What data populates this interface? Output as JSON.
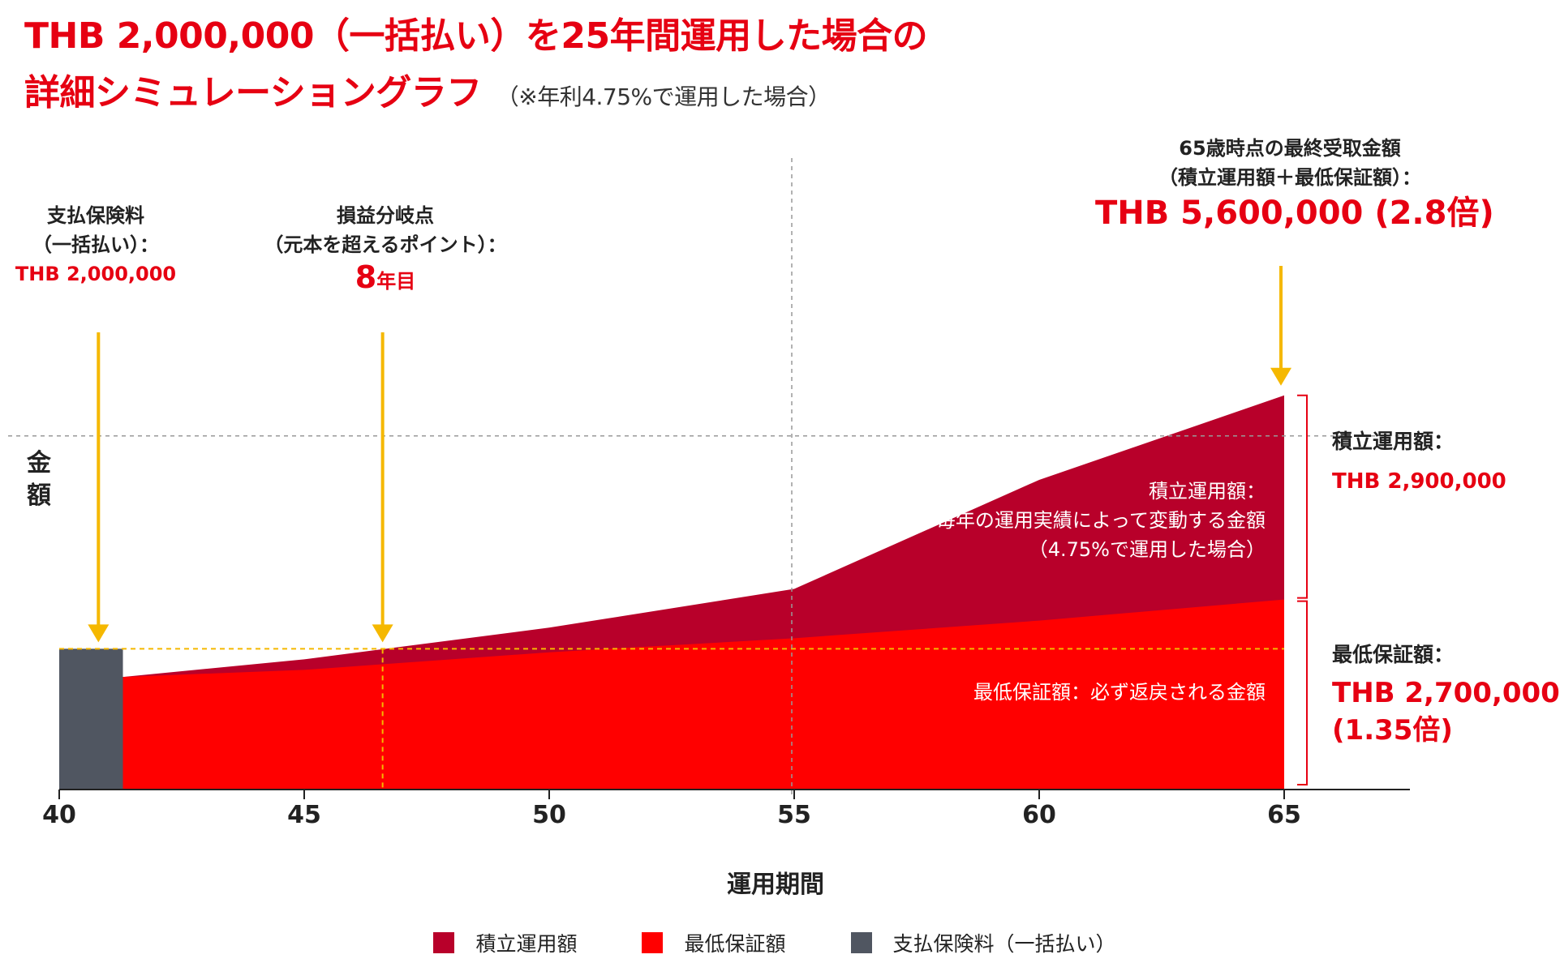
{
  "title": {
    "line1": "THB 2,000,000（一括払い）を25年間運用した場合の",
    "line2": "詳細シミュレーショングラフ",
    "note": "（※年利4.75%で運用した場合）"
  },
  "annotations": {
    "premium": {
      "line1": "支払保険料",
      "line2": "（一括払い）：",
      "value": "THB 2,000,000"
    },
    "breakeven": {
      "line1": "損益分岐点",
      "line2": "（元本を超えるポイント）：",
      "value_num": "8",
      "value_unit": "年目"
    },
    "final": {
      "line1": "65歳時点の最終受取金額",
      "line2": "（積立運用額＋最低保証額）：",
      "value": "THB 5,600,000 (2.8倍)"
    }
  },
  "side_labels": {
    "accumulated": {
      "heading": "積立運用額：",
      "value": "THB 2,900,000"
    },
    "guaranteed": {
      "heading": "最低保証額：",
      "value_line1": "THB 2,700,000",
      "value_line2": "(1.35倍)"
    }
  },
  "inner_labels": {
    "accumulated": {
      "line1": "積立運用額：",
      "line2": "毎年の運用実績によって変動する金額",
      "line3": "（4.75%で運用した場合）"
    },
    "guaranteed": {
      "line1": "最低保証額：必ず返戻される金額"
    }
  },
  "axes": {
    "y_label": [
      "金",
      "額"
    ],
    "x_label": "運用期間",
    "x_ticks": [
      "40",
      "45",
      "50",
      "55",
      "60",
      "65"
    ]
  },
  "legend": [
    {
      "label": "積立運用額",
      "color": "#b8002a"
    },
    {
      "label": "最低保証額",
      "color": "#ff0000"
    },
    {
      "label": "支払保険料（一括払い）",
      "color": "#505661"
    }
  ],
  "colors": {
    "accent": "#e60012",
    "accumulated": "#b8002a",
    "guaranteed": "#ff0000",
    "premium": "#505661",
    "arrow": "#f5b800",
    "gridline": "#999999"
  },
  "chart_data": {
    "type": "area",
    "x_ticks": [
      40,
      45,
      50,
      55,
      60,
      65
    ],
    "ylim": [
      0,
      6300000
    ],
    "premium_bar": {
      "x_from": 40,
      "x_to": 41.3,
      "value": 2000000
    },
    "series": [
      {
        "name": "最低保証額",
        "x": [
          41.3,
          45,
          50,
          55,
          60,
          65
        ],
        "values": [
          1600000,
          1700000,
          1950000,
          2150000,
          2400000,
          2700000
        ]
      },
      {
        "name": "積立運用額",
        "x": [
          41.3,
          45,
          50,
          55,
          60,
          65
        ],
        "values": [
          1600000,
          1850000,
          2300000,
          2850000,
          4400000,
          5600000
        ]
      }
    ],
    "breakeven_age": 46.6,
    "final_total": 5600000,
    "accumulated_final": 2900000,
    "guaranteed_final": 2700000
  }
}
